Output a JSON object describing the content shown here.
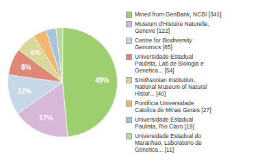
{
  "chart_data": {
    "type": "pie",
    "categories": [
      "Mined from GenBank, NCBI [341]",
      "Museum d'Histoire Naturelle,\nGeneve [122]",
      "Centre for Biodiversity\nGenomics [85]",
      "Universidade Estadual\nPaulista, Lab de Biologia e\nGenetica... [54]",
      "Smithsonian Institution,\nNational Museum of Natural\nHistor... [40]",
      "Pontificia Universidade\nCatolica de Minas Gerais [27]",
      "Universidade Estadual\nPaulista, Rio Claro [19]",
      "Universidade Estadual do\nMaranhao, Laboratorio de\nGenetica... [11]"
    ],
    "values": [
      49,
      17,
      12,
      8,
      6,
      4,
      3,
      2
    ],
    "value_labels": [
      "49%",
      "17%",
      "12%",
      "8%",
      "6%",
      null,
      null,
      null
    ],
    "colors": [
      "#9ecf6e",
      "#d8b8d8",
      "#c5d8e8",
      "#e08878",
      "#d8d898",
      "#f0b870",
      "#a8c4d8",
      "#b8d8a0"
    ],
    "data_labels": true,
    "legend": "right"
  }
}
